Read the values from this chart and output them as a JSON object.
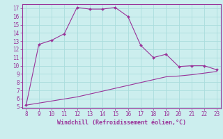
{
  "xlabel": "Windchill (Refroidissement éolien,°C)",
  "line1_x": [
    8,
    9,
    10,
    11,
    12,
    13,
    14,
    15,
    16,
    17,
    18,
    19,
    20,
    21,
    22,
    23
  ],
  "line1_y": [
    5.2,
    12.6,
    13.1,
    13.9,
    17.1,
    16.9,
    16.9,
    17.1,
    16.0,
    12.5,
    11.0,
    11.4,
    9.9,
    10.0,
    10.0,
    9.5
  ],
  "line2_x": [
    8,
    9,
    10,
    11,
    12,
    13,
    14,
    15,
    16,
    17,
    18,
    19,
    20,
    21,
    22,
    23
  ],
  "line2_y": [
    5.2,
    5.45,
    5.7,
    5.95,
    6.2,
    6.55,
    6.9,
    7.25,
    7.6,
    7.95,
    8.3,
    8.65,
    8.75,
    8.9,
    9.1,
    9.3
  ],
  "line_color": "#993399",
  "bg_color": "#cceeee",
  "grid_color": "#aadddd",
  "text_color": "#993399",
  "xlim": [
    7.7,
    23.3
  ],
  "ylim": [
    4.8,
    17.5
  ],
  "yticks": [
    5,
    6,
    7,
    8,
    9,
    10,
    11,
    12,
    13,
    14,
    15,
    16,
    17
  ],
  "xticks": [
    8,
    9,
    10,
    11,
    12,
    13,
    14,
    15,
    16,
    17,
    18,
    19,
    20,
    21,
    22,
    23
  ],
  "tick_fontsize": 5.5,
  "xlabel_fontsize": 6.0
}
